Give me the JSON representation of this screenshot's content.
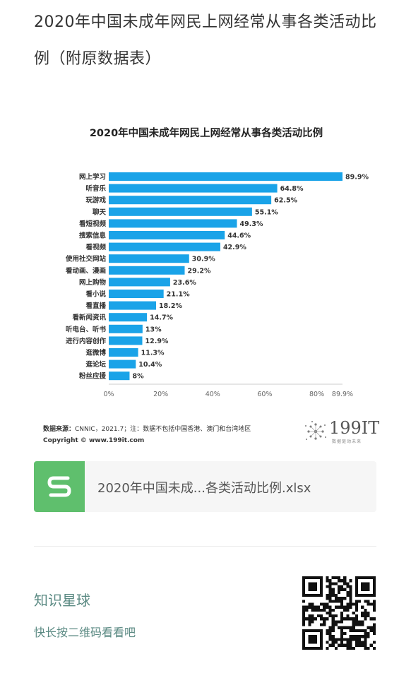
{
  "article": {
    "title": "2020年中国未成年网民上网经常从事各类活动比例（附原数据表）"
  },
  "chart_data": {
    "type": "bar",
    "orientation": "horizontal",
    "title": "2020年中国未成年网民上网经常从事各类活动比例",
    "categories": [
      "网上学习",
      "听音乐",
      "玩游戏",
      "聊天",
      "看短视频",
      "搜索信息",
      "看视频",
      "使用社交网站",
      "看动画、漫画",
      "网上购物",
      "看小说",
      "看直播",
      "看新闻资讯",
      "听电台、听书",
      "进行内容创作",
      "逛微博",
      "逛论坛",
      "粉丝应援"
    ],
    "values": [
      89.9,
      64.8,
      62.5,
      55.1,
      49.3,
      44.6,
      42.9,
      30.9,
      29.2,
      23.6,
      21.1,
      18.2,
      14.7,
      13,
      12.9,
      11.3,
      10.4,
      8
    ],
    "value_labels": [
      "89.9%",
      "64.8%",
      "62.5%",
      "55.1%",
      "49.3%",
      "44.6%",
      "42.9%",
      "30.9%",
      "29.2%",
      "23.6%",
      "21.1%",
      "18.2%",
      "14.7%",
      "13%",
      "12.9%",
      "11.3%",
      "10.4%",
      "8%"
    ],
    "x_ticks": [
      0,
      20,
      40,
      60,
      80,
      89.9
    ],
    "x_tick_labels": [
      "0%",
      "20%",
      "40%",
      "60%",
      "80%",
      "89.9%"
    ],
    "xlim": [
      0,
      89.9
    ],
    "bar_color": "#1aa3e8",
    "grid": false
  },
  "source": {
    "label": "数据来源：",
    "text": "CNNIC，2021.7；注：数据不包括中国香港、澳门和台湾地区",
    "copyright": "Copyright © www.199it.com"
  },
  "logo": {
    "text": "199IT",
    "sub": "数据驱动未来",
    "icon": "dandelion-logo-icon"
  },
  "file": {
    "name": "2020年中国未成...各类活动比例.xlsx",
    "icon": "spreadsheet-s-icon",
    "icon_color": "#5fbf6d"
  },
  "promo": {
    "title": "知识星球",
    "subtitle": "快长按二维码看看吧",
    "qr_icon": "qr-code-icon"
  }
}
